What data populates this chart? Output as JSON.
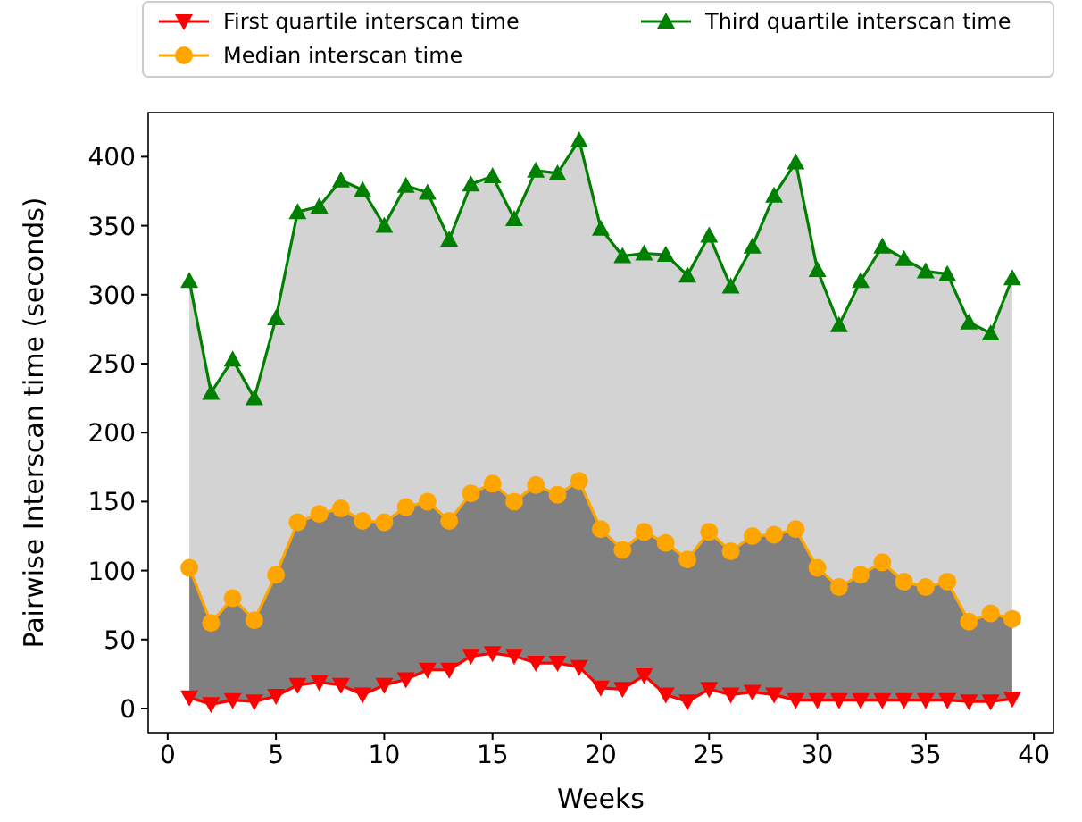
{
  "chart_data": {
    "type": "line",
    "xlabel": "Weeks",
    "ylabel": "Pairwise Interscan time (seconds)",
    "x": [
      1,
      2,
      3,
      4,
      5,
      6,
      7,
      8,
      9,
      10,
      11,
      12,
      13,
      14,
      15,
      16,
      17,
      18,
      19,
      20,
      21,
      22,
      23,
      24,
      25,
      26,
      27,
      28,
      29,
      30,
      31,
      32,
      33,
      34,
      35,
      36,
      37,
      38,
      39
    ],
    "xlim": [
      -0.9,
      40.9
    ],
    "xticks": [
      0,
      5,
      10,
      15,
      20,
      25,
      30,
      35,
      40
    ],
    "ylim": [
      -17.5,
      432
    ],
    "yticks": [
      0,
      50,
      100,
      150,
      200,
      250,
      300,
      350,
      400
    ],
    "legend": "top",
    "grid": false,
    "series": [
      {
        "name": "First quartile interscan time",
        "color": "#ff0000",
        "marker": "triangle-down",
        "values": [
          8,
          3,
          6,
          5,
          9,
          17,
          19,
          17,
          10,
          17,
          21,
          28,
          28,
          38,
          40,
          38,
          33,
          33,
          30,
          15,
          14,
          24,
          10,
          5,
          14,
          10,
          12,
          10,
          6,
          6,
          6,
          6,
          6,
          6,
          6,
          6,
          5,
          5,
          7
        ]
      },
      {
        "name": "Median interscan time",
        "color": "#ffa500",
        "marker": "circle",
        "values": [
          102,
          62,
          80,
          64,
          97,
          135,
          141,
          145,
          136,
          135,
          146,
          150,
          136,
          156,
          163,
          150,
          162,
          155,
          165,
          130,
          115,
          128,
          120,
          108,
          128,
          114,
          125,
          126,
          130,
          102,
          88,
          97,
          106,
          92,
          88,
          92,
          63,
          69,
          65
        ],
        "lower": [
          8,
          3,
          6,
          5,
          9,
          17,
          19,
          17,
          10,
          17,
          21,
          28,
          28,
          38,
          40,
          38,
          33,
          33,
          30,
          15,
          14,
          24,
          10,
          5,
          14,
          10,
          12,
          10,
          6,
          6,
          6,
          6,
          6,
          6,
          6,
          6,
          5,
          5,
          7
        ],
        "upper": [
          102,
          62,
          80,
          64,
          97,
          135,
          141,
          145,
          136,
          135,
          146,
          150,
          136,
          156,
          163,
          150,
          162,
          155,
          165,
          130,
          115,
          128,
          120,
          108,
          128,
          114,
          125,
          126,
          130,
          102,
          88,
          97,
          106,
          92,
          88,
          92,
          63,
          69,
          65
        ]
      },
      {
        "name": "Third quartile interscan time",
        "color": "#008000",
        "marker": "triangle",
        "values": [
          310,
          229,
          253,
          225,
          283,
          360,
          364,
          383,
          376,
          350,
          379,
          374,
          340,
          380,
          386,
          355,
          390,
          388,
          412,
          348,
          328,
          330,
          329,
          314,
          343,
          306,
          335,
          372,
          396,
          318,
          278,
          310,
          335,
          326,
          317,
          315,
          280,
          272,
          312
        ],
        "lower": [
          102,
          62,
          80,
          64,
          97,
          135,
          141,
          145,
          136,
          135,
          146,
          150,
          136,
          156,
          163,
          150,
          162,
          155,
          165,
          130,
          115,
          128,
          120,
          108,
          128,
          114,
          125,
          126,
          130,
          102,
          88,
          97,
          106,
          92,
          88,
          92,
          63,
          69,
          65
        ],
        "upper": [
          310,
          229,
          253,
          225,
          283,
          360,
          364,
          383,
          376,
          350,
          379,
          374,
          340,
          380,
          386,
          355,
          390,
          388,
          412,
          348,
          328,
          330,
          329,
          314,
          343,
          306,
          335,
          372,
          396,
          318,
          278,
          310,
          335,
          326,
          317,
          315,
          280,
          272,
          312
        ]
      }
    ]
  }
}
